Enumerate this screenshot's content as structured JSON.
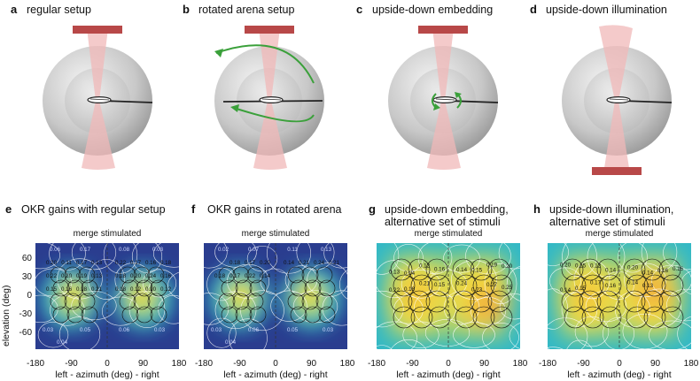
{
  "top_panels": [
    {
      "letter": "a",
      "title": "regular setup"
    },
    {
      "letter": "b",
      "title": "rotated arena setup"
    },
    {
      "letter": "c",
      "title": "upside-down embedding"
    },
    {
      "letter": "d",
      "title": "upside-down illumination"
    }
  ],
  "bottom_panels": [
    {
      "letter": "e",
      "title_line1": "OKR gains with regular setup",
      "title_line2": "",
      "map_title": "merge stimulated"
    },
    {
      "letter": "f",
      "title_line1": "OKR gains in rotated arena",
      "title_line2": "",
      "map_title": "merge stimulated"
    },
    {
      "letter": "g",
      "title_line1": "upside-down embedding,",
      "title_line2": "alternative set of stimuli",
      "map_title": "merge stimulated"
    },
    {
      "letter": "h",
      "title_line1": "upside-down illumination,",
      "title_line2": "alternative set of stimuli",
      "map_title": "merge stimulated"
    }
  ],
  "axes": {
    "ylabel": "elevation (deg)",
    "xlabel": "left - azimuth (deg) - right",
    "yticks": [
      "60",
      "30",
      "0",
      "-30",
      "-60"
    ],
    "xticks": [
      "-180",
      "-90",
      "0",
      "90",
      "180"
    ]
  },
  "colors": {
    "light_red": "#f0b8b8",
    "dark_red": "#b84848",
    "arrow_green": "#3aa03a",
    "deep_blue": "#2a3d8f",
    "cyan": "#30b8c8",
    "yellow": "#f2dc3c",
    "orange": "#f0b040"
  },
  "chart_data": [
    {
      "type": "heatmap",
      "title": "merge stimulated",
      "xlabel": "left - azimuth (deg) - right",
      "ylabel": "elevation (deg)",
      "xlim": [
        -180,
        180
      ],
      "ylim": [
        -90,
        90
      ],
      "gain_labels": [
        "0.06",
        "0.17",
        "0.08",
        "0.03",
        "0.20",
        "0.11",
        "0.17",
        "0.13",
        "0.22",
        "0.17",
        "0.16",
        "0.18",
        "0.22",
        "0.20",
        "0.19",
        "0.13",
        "0.18",
        "0.20",
        "0.24",
        "0.16",
        "0.15",
        "0.16",
        "0.18",
        "0.21",
        "0.18",
        "0.12",
        "0.10",
        "0.12",
        "0.03",
        "0.05",
        "0.06",
        "0.03",
        "0.04"
      ]
    },
    {
      "type": "heatmap",
      "title": "merge stimulated",
      "xlabel": "left - azimuth (deg) - right",
      "ylabel": "elevation (deg)",
      "xlim": [
        -180,
        180
      ],
      "ylim": [
        -90,
        90
      ],
      "gain_labels": [
        "0.02",
        "0.07",
        "0.11",
        "0.13",
        "0.18",
        "0.17",
        "0.20",
        "0.14",
        "0.21",
        "0.24",
        "0.21",
        "0.18",
        "0.17",
        "0.22",
        "0.14",
        "0.03",
        "0.06",
        "0.05",
        "0.03",
        "0.04"
      ]
    },
    {
      "type": "heatmap",
      "title": "merge stimulated",
      "xlabel": "left - azimuth (deg) - right",
      "ylabel": "elevation (deg)",
      "xlim": [
        -180,
        180
      ],
      "ylim": [
        -90,
        90
      ],
      "gain_labels": [
        "0.13",
        "0.14",
        "0.12",
        "0.16",
        "0.14",
        "0.15",
        "0.19",
        "0.20",
        "0.22",
        "0.18",
        "0.21",
        "0.15",
        "0.24",
        "0.23",
        "0.27",
        "0.25"
      ]
    },
    {
      "type": "heatmap",
      "title": "merge stimulated",
      "xlabel": "left - azimuth (deg) - right",
      "ylabel": "elevation (deg)",
      "xlim": [
        -180,
        180
      ],
      "ylim": [
        -90,
        90
      ],
      "gain_labels": [
        "0.20",
        "0.15",
        "0.12",
        "0.14",
        "0.20",
        "0.14",
        "0.16",
        "0.16",
        "0.14",
        "0.15",
        "0.17",
        "0.16",
        "0.14",
        "0.13"
      ]
    }
  ]
}
